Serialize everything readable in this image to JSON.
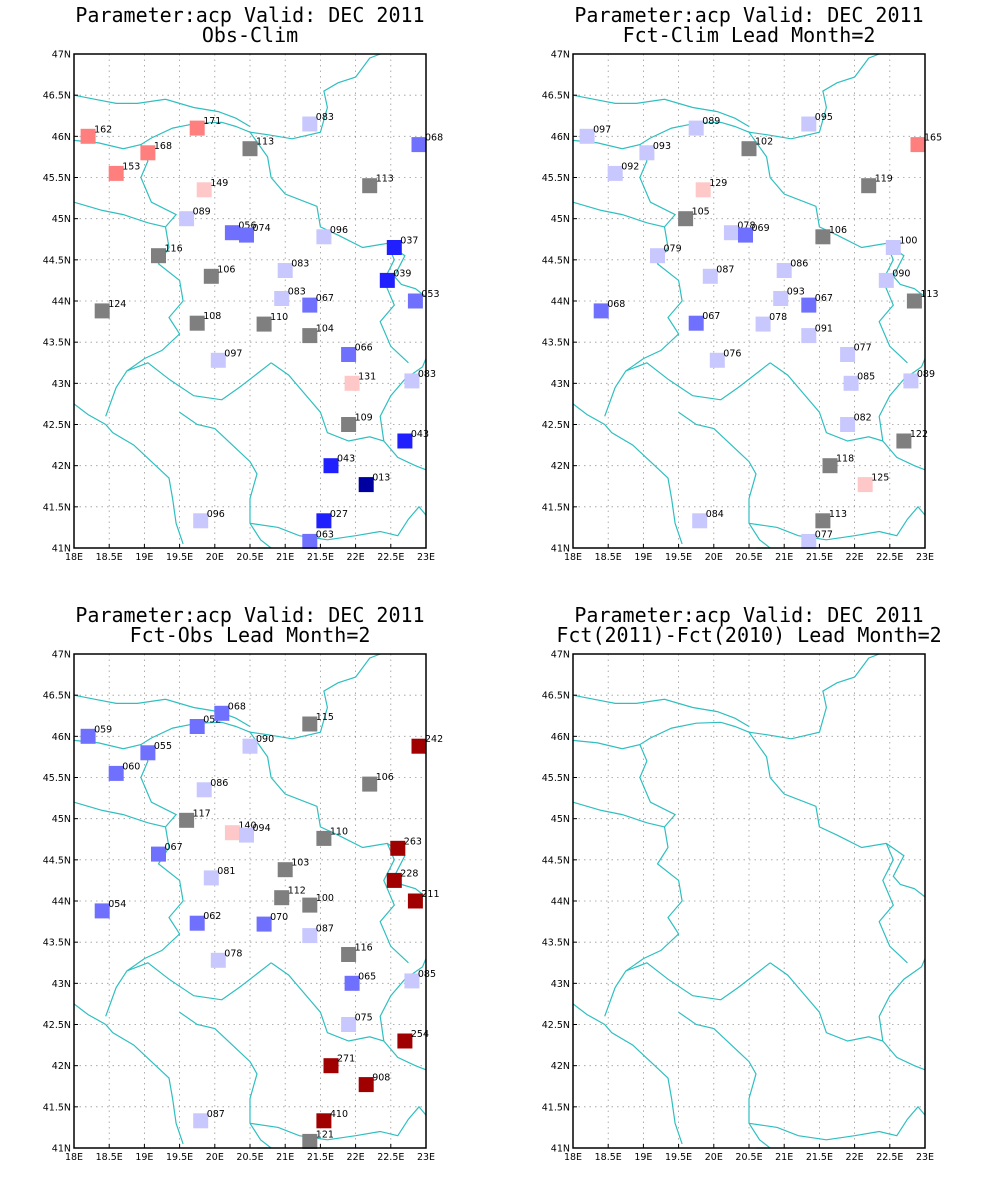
{
  "panels": [
    {
      "id": "obs-clim",
      "title_line1": "Parameter:acp Valid: DEC 2011",
      "title_line2": "Obs-Clim",
      "stations": [
        {
          "lon": 18.2,
          "lat": 46.0,
          "label": "162",
          "color": "#ff7f7f"
        },
        {
          "lon": 18.6,
          "lat": 45.55,
          "label": "153",
          "color": "#ff7f7f"
        },
        {
          "lon": 19.05,
          "lat": 45.8,
          "label": "168",
          "color": "#ff7f7f"
        },
        {
          "lon": 19.75,
          "lat": 46.1,
          "label": "171",
          "color": "#ff7f7f"
        },
        {
          "lon": 19.85,
          "lat": 45.35,
          "label": "149",
          "color": "#ffc8c8"
        },
        {
          "lon": 20.5,
          "lat": 45.85,
          "label": "113",
          "color": "#7f7f7f"
        },
        {
          "lon": 21.35,
          "lat": 46.15,
          "label": "083",
          "color": "#c8c8ff"
        },
        {
          "lon": 22.9,
          "lat": 45.9,
          "label": "068",
          "color": "#7070ff"
        },
        {
          "lon": 22.2,
          "lat": 45.4,
          "label": "113",
          "color": "#7f7f7f"
        },
        {
          "lon": 19.6,
          "lat": 45.0,
          "label": "089",
          "color": "#c8c8ff"
        },
        {
          "lon": 20.25,
          "lat": 44.83,
          "label": "056",
          "color": "#7070ff"
        },
        {
          "lon": 20.45,
          "lat": 44.8,
          "label": "074",
          "color": "#7070ff"
        },
        {
          "lon": 19.2,
          "lat": 44.55,
          "label": "116",
          "color": "#7f7f7f"
        },
        {
          "lon": 19.95,
          "lat": 44.3,
          "label": "106",
          "color": "#7f7f7f"
        },
        {
          "lon": 21.0,
          "lat": 44.37,
          "label": "083",
          "color": "#c8c8ff"
        },
        {
          "lon": 21.55,
          "lat": 44.78,
          "label": "096",
          "color": "#c8c8ff"
        },
        {
          "lon": 22.55,
          "lat": 44.65,
          "label": "037",
          "color": "#2020ff"
        },
        {
          "lon": 22.45,
          "lat": 44.25,
          "label": "039",
          "color": "#2020ff"
        },
        {
          "lon": 22.85,
          "lat": 44.0,
          "label": "053",
          "color": "#7070ff"
        },
        {
          "lon": 18.4,
          "lat": 43.88,
          "label": "124",
          "color": "#7f7f7f"
        },
        {
          "lon": 19.75,
          "lat": 43.73,
          "label": "108",
          "color": "#7f7f7f"
        },
        {
          "lon": 20.7,
          "lat": 43.72,
          "label": "110",
          "color": "#7f7f7f"
        },
        {
          "lon": 20.95,
          "lat": 44.03,
          "label": "083",
          "color": "#c8c8ff"
        },
        {
          "lon": 21.35,
          "lat": 43.95,
          "label": "067",
          "color": "#7070ff"
        },
        {
          "lon": 21.35,
          "lat": 43.58,
          "label": "104",
          "color": "#7f7f7f"
        },
        {
          "lon": 20.05,
          "lat": 43.28,
          "label": "097",
          "color": "#c8c8ff"
        },
        {
          "lon": 21.9,
          "lat": 43.35,
          "label": "066",
          "color": "#7070ff"
        },
        {
          "lon": 21.95,
          "lat": 43.0,
          "label": "131",
          "color": "#ffc8c8"
        },
        {
          "lon": 22.8,
          "lat": 43.03,
          "label": "083",
          "color": "#c8c8ff"
        },
        {
          "lon": 21.9,
          "lat": 42.5,
          "label": "109",
          "color": "#7f7f7f"
        },
        {
          "lon": 22.7,
          "lat": 42.3,
          "label": "043",
          "color": "#2020ff"
        },
        {
          "lon": 21.65,
          "lat": 42.0,
          "label": "043",
          "color": "#2020ff"
        },
        {
          "lon": 22.15,
          "lat": 41.77,
          "label": "013",
          "color": "#0000a0"
        },
        {
          "lon": 19.8,
          "lat": 41.33,
          "label": "096",
          "color": "#c8c8ff"
        },
        {
          "lon": 21.55,
          "lat": 41.33,
          "label": "027",
          "color": "#2020ff"
        },
        {
          "lon": 21.35,
          "lat": 41.08,
          "label": "063",
          "color": "#7070ff"
        }
      ]
    },
    {
      "id": "fct-clim",
      "title_line1": "Parameter:acp Valid: DEC 2011",
      "title_line2": "Fct-Clim Lead Month=2",
      "stations": [
        {
          "lon": 18.2,
          "lat": 46.0,
          "label": "097",
          "color": "#c8c8ff"
        },
        {
          "lon": 18.6,
          "lat": 45.55,
          "label": "092",
          "color": "#c8c8ff"
        },
        {
          "lon": 19.05,
          "lat": 45.8,
          "label": "093",
          "color": "#c8c8ff"
        },
        {
          "lon": 19.75,
          "lat": 46.1,
          "label": "089",
          "color": "#c8c8ff"
        },
        {
          "lon": 19.85,
          "lat": 45.35,
          "label": "129",
          "color": "#ffc8c8"
        },
        {
          "lon": 20.5,
          "lat": 45.85,
          "label": "102",
          "color": "#7f7f7f"
        },
        {
          "lon": 21.35,
          "lat": 46.15,
          "label": "095",
          "color": "#c8c8ff"
        },
        {
          "lon": 22.9,
          "lat": 45.9,
          "label": "165",
          "color": "#ff7f7f"
        },
        {
          "lon": 22.2,
          "lat": 45.4,
          "label": "119",
          "color": "#7f7f7f"
        },
        {
          "lon": 19.6,
          "lat": 45.0,
          "label": "105",
          "color": "#7f7f7f"
        },
        {
          "lon": 20.25,
          "lat": 44.83,
          "label": "078",
          "color": "#c8c8ff"
        },
        {
          "lon": 20.45,
          "lat": 44.8,
          "label": "069",
          "color": "#7070ff"
        },
        {
          "lon": 19.2,
          "lat": 44.55,
          "label": "079",
          "color": "#c8c8ff"
        },
        {
          "lon": 19.95,
          "lat": 44.3,
          "label": "087",
          "color": "#c8c8ff"
        },
        {
          "lon": 21.0,
          "lat": 44.37,
          "label": "086",
          "color": "#c8c8ff"
        },
        {
          "lon": 21.55,
          "lat": 44.78,
          "label": "106",
          "color": "#7f7f7f"
        },
        {
          "lon": 22.55,
          "lat": 44.65,
          "label": "100",
          "color": "#c8c8ff"
        },
        {
          "lon": 22.45,
          "lat": 44.25,
          "label": "090",
          "color": "#c8c8ff"
        },
        {
          "lon": 22.85,
          "lat": 44.0,
          "label": "113",
          "color": "#7f7f7f"
        },
        {
          "lon": 18.4,
          "lat": 43.88,
          "label": "068",
          "color": "#7070ff"
        },
        {
          "lon": 19.75,
          "lat": 43.73,
          "label": "067",
          "color": "#7070ff"
        },
        {
          "lon": 20.7,
          "lat": 43.72,
          "label": "078",
          "color": "#c8c8ff"
        },
        {
          "lon": 20.95,
          "lat": 44.03,
          "label": "093",
          "color": "#c8c8ff"
        },
        {
          "lon": 21.35,
          "lat": 43.95,
          "label": "067",
          "color": "#7070ff"
        },
        {
          "lon": 21.35,
          "lat": 43.58,
          "label": "091",
          "color": "#c8c8ff"
        },
        {
          "lon": 20.05,
          "lat": 43.28,
          "label": "076",
          "color": "#c8c8ff"
        },
        {
          "lon": 21.9,
          "lat": 43.35,
          "label": "077",
          "color": "#c8c8ff"
        },
        {
          "lon": 21.95,
          "lat": 43.0,
          "label": "085",
          "color": "#c8c8ff"
        },
        {
          "lon": 22.8,
          "lat": 43.03,
          "label": "089",
          "color": "#c8c8ff"
        },
        {
          "lon": 21.9,
          "lat": 42.5,
          "label": "082",
          "color": "#c8c8ff"
        },
        {
          "lon": 22.7,
          "lat": 42.3,
          "label": "122",
          "color": "#7f7f7f"
        },
        {
          "lon": 21.65,
          "lat": 42.0,
          "label": "118",
          "color": "#7f7f7f"
        },
        {
          "lon": 22.15,
          "lat": 41.77,
          "label": "125",
          "color": "#ffc8c8"
        },
        {
          "lon": 19.8,
          "lat": 41.33,
          "label": "084",
          "color": "#c8c8ff"
        },
        {
          "lon": 21.55,
          "lat": 41.33,
          "label": "113",
          "color": "#7f7f7f"
        },
        {
          "lon": 21.35,
          "lat": 41.08,
          "label": "077",
          "color": "#c8c8ff"
        }
      ]
    },
    {
      "id": "fct-obs",
      "title_line1": "Parameter:acp Valid: DEC 2011",
      "title_line2": "Fct-Obs Lead Month=2",
      "stations": [
        {
          "lon": 18.2,
          "lat": 46.0,
          "label": "059",
          "color": "#7070ff"
        },
        {
          "lon": 18.6,
          "lat": 45.55,
          "label": "060",
          "color": "#7070ff"
        },
        {
          "lon": 19.05,
          "lat": 45.8,
          "label": "055",
          "color": "#7070ff"
        },
        {
          "lon": 19.75,
          "lat": 46.12,
          "label": "052",
          "color": "#7070ff"
        },
        {
          "lon": 20.1,
          "lat": 46.28,
          "label": "068",
          "color": "#7070ff"
        },
        {
          "lon": 19.85,
          "lat": 45.35,
          "label": "086",
          "color": "#c8c8ff"
        },
        {
          "lon": 20.5,
          "lat": 45.88,
          "label": "090",
          "color": "#c8c8ff"
        },
        {
          "lon": 21.35,
          "lat": 46.15,
          "label": "115",
          "color": "#7f7f7f"
        },
        {
          "lon": 22.9,
          "lat": 45.88,
          "label": "242",
          "color": "#a00000"
        },
        {
          "lon": 22.2,
          "lat": 45.42,
          "label": "106",
          "color": "#7f7f7f"
        },
        {
          "lon": 19.6,
          "lat": 44.98,
          "label": "117",
          "color": "#7f7f7f"
        },
        {
          "lon": 20.25,
          "lat": 44.83,
          "label": "140",
          "color": "#ffc8c8"
        },
        {
          "lon": 20.45,
          "lat": 44.8,
          "label": "094",
          "color": "#c8c8ff"
        },
        {
          "lon": 21.55,
          "lat": 44.76,
          "label": "110",
          "color": "#7f7f7f"
        },
        {
          "lon": 19.2,
          "lat": 44.57,
          "label": "067",
          "color": "#7070ff"
        },
        {
          "lon": 22.6,
          "lat": 44.64,
          "label": "263",
          "color": "#a00000"
        },
        {
          "lon": 21.0,
          "lat": 44.38,
          "label": "103",
          "color": "#7f7f7f"
        },
        {
          "lon": 19.95,
          "lat": 44.28,
          "label": "081",
          "color": "#c8c8ff"
        },
        {
          "lon": 22.55,
          "lat": 44.25,
          "label": "228",
          "color": "#a00000"
        },
        {
          "lon": 22.85,
          "lat": 44.0,
          "label": "211",
          "color": "#a00000"
        },
        {
          "lon": 20.95,
          "lat": 44.04,
          "label": "112",
          "color": "#7f7f7f"
        },
        {
          "lon": 21.35,
          "lat": 43.95,
          "label": "100",
          "color": "#7f7f7f"
        },
        {
          "lon": 18.4,
          "lat": 43.88,
          "label": "054",
          "color": "#7070ff"
        },
        {
          "lon": 19.75,
          "lat": 43.73,
          "label": "062",
          "color": "#7070ff"
        },
        {
          "lon": 20.7,
          "lat": 43.72,
          "label": "070",
          "color": "#7070ff"
        },
        {
          "lon": 21.35,
          "lat": 43.58,
          "label": "087",
          "color": "#c8c8ff"
        },
        {
          "lon": 21.9,
          "lat": 43.35,
          "label": "116",
          "color": "#7f7f7f"
        },
        {
          "lon": 20.05,
          "lat": 43.28,
          "label": "078",
          "color": "#c8c8ff"
        },
        {
          "lon": 21.95,
          "lat": 43.0,
          "label": "065",
          "color": "#7070ff"
        },
        {
          "lon": 22.8,
          "lat": 43.03,
          "label": "085",
          "color": "#c8c8ff"
        },
        {
          "lon": 21.9,
          "lat": 42.5,
          "label": "075",
          "color": "#c8c8ff"
        },
        {
          "lon": 22.7,
          "lat": 42.3,
          "label": "254",
          "color": "#a00000"
        },
        {
          "lon": 21.65,
          "lat": 42.0,
          "label": "271",
          "color": "#a00000"
        },
        {
          "lon": 22.15,
          "lat": 41.77,
          "label": "908",
          "color": "#a00000"
        },
        {
          "lon": 19.8,
          "lat": 41.33,
          "label": "087",
          "color": "#c8c8ff"
        },
        {
          "lon": 21.55,
          "lat": 41.33,
          "label": "410",
          "color": "#a00000"
        },
        {
          "lon": 21.35,
          "lat": 41.08,
          "label": "121",
          "color": "#7f7f7f"
        }
      ]
    },
    {
      "id": "fct-fct",
      "title_line1": "Parameter:acp Valid: DEC 2011",
      "title_line2": "Fct(2011)-Fct(2010) Lead Month=2",
      "stations": []
    }
  ],
  "map": {
    "lon_ticks": [
      "18E",
      "18.5E",
      "19E",
      "19.5E",
      "20E",
      "20.5E",
      "21E",
      "21.5E",
      "22E",
      "22.5E",
      "23E"
    ],
    "lat_ticks": [
      "41N",
      "41.5N",
      "42N",
      "42.5N",
      "43N",
      "43.5N",
      "44N",
      "44.5N",
      "45N",
      "45.5N",
      "46N",
      "46.5N",
      "47N"
    ],
    "lon_range": [
      18,
      23
    ],
    "lat_range": [
      41,
      47
    ],
    "border_color": "#2fbfc0",
    "grid": true
  }
}
